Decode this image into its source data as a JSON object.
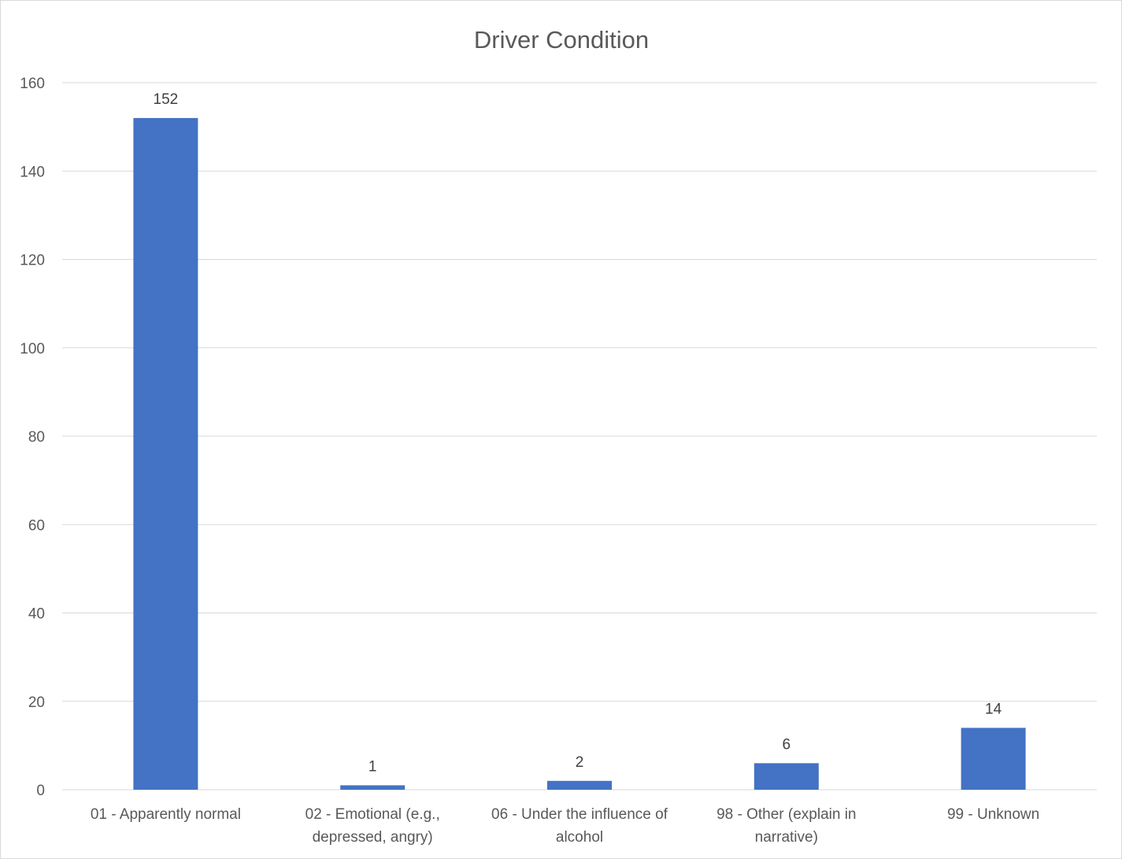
{
  "chart_data": {
    "type": "bar",
    "title": "Driver Condition",
    "xlabel": "",
    "ylabel": "",
    "categories": [
      [
        "01 - Apparently normal"
      ],
      [
        "02 - Emotional (e.g.,",
        "depressed, angry)"
      ],
      [
        "06 - Under the influence of",
        "alcohol"
      ],
      [
        "98 - Other (explain in",
        "narrative)"
      ],
      [
        "99 - Unknown"
      ]
    ],
    "values": [
      152,
      1,
      2,
      6,
      14
    ],
    "data_labels": [
      "152",
      "1",
      "2",
      "6",
      "14"
    ],
    "ylim": [
      0,
      160
    ],
    "yticks": [
      "0",
      "20",
      "40",
      "60",
      "80",
      "100",
      "120",
      "140",
      "160"
    ],
    "grid": true,
    "legend": "none",
    "bar_color": "#4472c4",
    "grid_color": "#d9d9d9"
  }
}
